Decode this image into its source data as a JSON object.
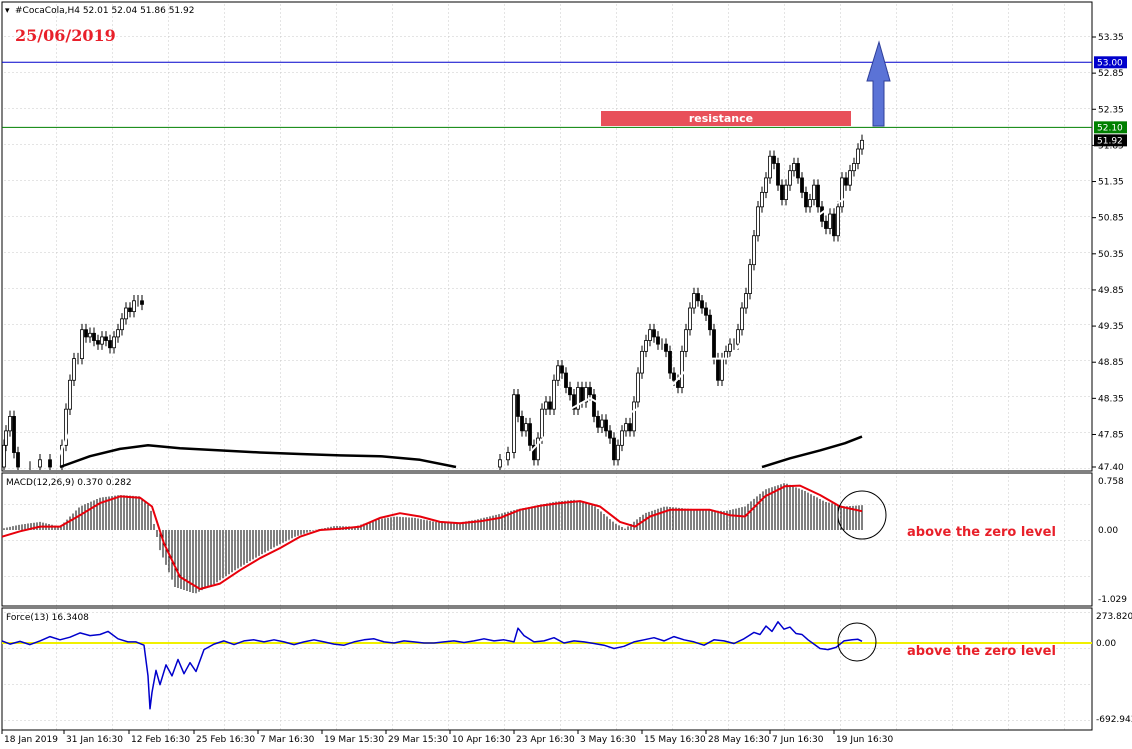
{
  "header": {
    "symbol_info": "#CocaCola,H4  52.01 52.04 51.86 51.92",
    "date": "25/06/2019"
  },
  "annotations": {
    "resistance": "resistance",
    "macd_note": "above the zero level",
    "force_note": "above the zero level"
  },
  "colors": {
    "candle": "#000000",
    "ma_fast": "#ffffff",
    "ma_slow": "#000000",
    "macd_signal": "#e8000b",
    "force": "#0000cc",
    "zero_line": "#f0f000",
    "resistance_line": "#008000",
    "target_line": "#0000cc",
    "arrow": "#5b73d6",
    "resistance_box": "#e8505a",
    "date_text": "#e8202a"
  },
  "chart_data": [
    {
      "type": "candlestick",
      "panel": "price",
      "y_ticks": [
        "53.35",
        "52.85",
        "52.35",
        "51.85",
        "51.35",
        "50.85",
        "50.35",
        "49.85",
        "49.35",
        "48.85",
        "48.35",
        "47.85",
        "47.40"
      ],
      "ylim": [
        47.4,
        53.6
      ],
      "levels": [
        {
          "value": 53.0,
          "label": "53.00",
          "role": "target"
        },
        {
          "value": 52.1,
          "label": "52.10",
          "role": "resistance"
        }
      ],
      "last_price": {
        "value": 51.92,
        "label": "51.92"
      },
      "x_ticks": [
        "18 Jan 2019",
        "31 Jan 16:30",
        "12 Feb 16:30",
        "25 Feb 16:30",
        "7 Mar 16:30",
        "19 Mar 15:30",
        "29 Mar 15:30",
        "10 Apr 16:30",
        "23 Apr 16:30",
        "3 May 16:30",
        "15 May 16:30",
        "28 May 16:30",
        "7 Jun 16:30",
        "19 Jun 16:30"
      ],
      "close_path": [
        [
          0,
          47.4
        ],
        [
          4,
          47.7
        ],
        [
          6,
          47.9
        ],
        [
          10,
          48.1
        ],
        [
          14,
          47.6
        ],
        [
          18,
          47.4
        ],
        [
          30,
          47.4
        ],
        [
          40,
          47.5
        ],
        [
          50,
          47.4
        ],
        [
          62,
          47.7
        ],
        [
          66,
          48.2
        ],
        [
          70,
          48.6
        ],
        [
          74,
          48.9
        ],
        [
          78,
          48.9
        ],
        [
          82,
          49.3
        ],
        [
          86,
          49.2
        ],
        [
          90,
          49.25
        ],
        [
          94,
          49.15
        ],
        [
          98,
          49.1
        ],
        [
          102,
          49.2
        ],
        [
          106,
          49.15
        ],
        [
          110,
          49.05
        ],
        [
          114,
          49.2
        ],
        [
          118,
          49.3
        ],
        [
          122,
          49.45
        ],
        [
          126,
          49.6
        ],
        [
          130,
          49.55
        ],
        [
          134,
          49.7
        ],
        [
          138,
          49.7
        ],
        [
          142,
          49.65
        ],
        [
          146,
          null
        ],
        [
          490,
          47.4
        ],
        [
          500,
          47.5
        ],
        [
          508,
          47.6
        ],
        [
          514,
          48.4
        ],
        [
          518,
          48.1
        ],
        [
          522,
          47.9
        ],
        [
          526,
          48.0
        ],
        [
          530,
          47.7
        ],
        [
          534,
          47.5
        ],
        [
          538,
          47.8
        ],
        [
          542,
          48.2
        ],
        [
          546,
          48.3
        ],
        [
          550,
          48.2
        ],
        [
          554,
          48.6
        ],
        [
          558,
          48.8
        ],
        [
          562,
          48.7
        ],
        [
          566,
          48.5
        ],
        [
          570,
          48.4
        ],
        [
          574,
          48.2
        ],
        [
          578,
          48.5
        ],
        [
          582,
          48.3
        ],
        [
          586,
          48.5
        ],
        [
          590,
          48.4
        ],
        [
          594,
          48.1
        ],
        [
          598,
          47.95
        ],
        [
          602,
          48.05
        ],
        [
          606,
          47.9
        ],
        [
          610,
          47.8
        ],
        [
          614,
          47.5
        ],
        [
          618,
          47.7
        ],
        [
          622,
          47.9
        ],
        [
          626,
          48.0
        ],
        [
          630,
          47.9
        ],
        [
          634,
          48.3
        ],
        [
          638,
          48.7
        ],
        [
          642,
          49.0
        ],
        [
          646,
          49.15
        ],
        [
          650,
          49.3
        ],
        [
          654,
          49.2
        ],
        [
          658,
          49.1
        ],
        [
          662,
          49.1
        ],
        [
          666,
          49.0
        ],
        [
          670,
          48.7
        ],
        [
          674,
          48.6
        ],
        [
          678,
          48.5
        ],
        [
          682,
          49.0
        ],
        [
          686,
          49.3
        ],
        [
          690,
          49.6
        ],
        [
          694,
          49.8
        ],
        [
          698,
          49.7
        ],
        [
          702,
          49.6
        ],
        [
          706,
          49.5
        ],
        [
          710,
          49.3
        ],
        [
          714,
          48.9
        ],
        [
          718,
          48.6
        ],
        [
          722,
          48.9
        ],
        [
          726,
          49.0
        ],
        [
          730,
          49.1
        ],
        [
          734,
          49.1
        ],
        [
          738,
          49.3
        ],
        [
          742,
          49.6
        ],
        [
          746,
          49.8
        ],
        [
          750,
          50.2
        ],
        [
          754,
          50.6
        ],
        [
          758,
          51.0
        ],
        [
          762,
          51.2
        ],
        [
          766,
          51.4
        ],
        [
          770,
          51.7
        ],
        [
          774,
          51.6
        ],
        [
          778,
          51.3
        ],
        [
          782,
          51.1
        ],
        [
          786,
          51.3
        ],
        [
          790,
          51.5
        ],
        [
          794,
          51.6
        ],
        [
          798,
          51.4
        ],
        [
          802,
          51.2
        ],
        [
          806,
          51.0
        ],
        [
          810,
          51.1
        ],
        [
          814,
          51.3
        ],
        [
          818,
          51.0
        ],
        [
          822,
          50.8
        ],
        [
          826,
          50.7
        ],
        [
          830,
          50.9
        ],
        [
          834,
          50.6
        ],
        [
          838,
          51.0
        ],
        [
          842,
          51.4
        ],
        [
          846,
          51.3
        ],
        [
          850,
          51.5
        ],
        [
          854,
          51.6
        ],
        [
          858,
          51.8
        ],
        [
          862,
          51.92
        ]
      ],
      "ma_fast_path": [
        [
          54,
          47.4
        ],
        [
          70,
          47.9
        ],
        [
          90,
          48.3
        ],
        [
          110,
          48.7
        ],
        [
          130,
          49.0
        ],
        [
          146,
          49.15
        ],
        [
          156,
          48.8
        ],
        [
          166,
          48.2
        ],
        [
          176,
          47.6
        ],
        [
          182,
          47.4
        ],
        [
          183,
          null
        ],
        [
          530,
          47.6
        ],
        [
          550,
          47.9
        ],
        [
          570,
          48.2
        ],
        [
          590,
          48.35
        ],
        [
          610,
          48.2
        ],
        [
          630,
          48.15
        ],
        [
          650,
          48.3
        ],
        [
          670,
          48.5
        ],
        [
          690,
          48.8
        ],
        [
          710,
          48.9
        ],
        [
          730,
          48.9
        ],
        [
          750,
          49.3
        ],
        [
          770,
          49.9
        ],
        [
          790,
          50.4
        ],
        [
          810,
          50.8
        ],
        [
          830,
          51.0
        ],
        [
          850,
          51.15
        ],
        [
          862,
          51.2
        ]
      ],
      "ma_slow_path": [
        [
          60,
          47.4
        ],
        [
          90,
          47.55
        ],
        [
          120,
          47.65
        ],
        [
          148,
          47.7
        ],
        [
          180,
          47.66
        ],
        [
          220,
          47.63
        ],
        [
          260,
          47.6
        ],
        [
          300,
          47.58
        ],
        [
          340,
          47.56
        ],
        [
          380,
          47.55
        ],
        [
          420,
          47.5
        ],
        [
          456,
          47.4
        ],
        [
          457,
          null
        ],
        [
          762,
          47.4
        ],
        [
          790,
          47.52
        ],
        [
          820,
          47.63
        ],
        [
          845,
          47.73
        ],
        [
          862,
          47.82
        ]
      ]
    },
    {
      "type": "bar",
      "panel": "macd",
      "title": "MACD(12,26,9) 0.370 0.282",
      "y_ticks": [
        "0.758",
        "0.00",
        "-1.029"
      ],
      "ylim": [
        -1.029,
        0.758
      ],
      "x": [
        2,
        20,
        40,
        60,
        80,
        100,
        120,
        140,
        150,
        160,
        175,
        195,
        215,
        235,
        255,
        275,
        295,
        315,
        335,
        355,
        375,
        395,
        415,
        435,
        455,
        475,
        495,
        515,
        535,
        555,
        575,
        595,
        615,
        625,
        645,
        665,
        685,
        705,
        725,
        745,
        765,
        785,
        805,
        825,
        845,
        862
      ],
      "values": [
        0.02,
        0.08,
        0.12,
        0.05,
        0.35,
        0.48,
        0.52,
        0.5,
        0.35,
        -0.3,
        -0.85,
        -0.95,
        -0.8,
        -0.6,
        -0.42,
        -0.25,
        -0.1,
        0.0,
        0.06,
        0.05,
        0.15,
        0.2,
        0.18,
        0.12,
        0.1,
        0.15,
        0.22,
        0.3,
        0.36,
        0.42,
        0.45,
        0.35,
        0.1,
        0.02,
        0.25,
        0.35,
        0.32,
        0.3,
        0.28,
        0.35,
        0.6,
        0.7,
        0.58,
        0.42,
        0.35,
        0.37
      ],
      "signal_path": [
        [
          2,
          -0.1
        ],
        [
          20,
          -0.02
        ],
        [
          40,
          0.05
        ],
        [
          60,
          0.05
        ],
        [
          80,
          0.22
        ],
        [
          100,
          0.4
        ],
        [
          120,
          0.5
        ],
        [
          140,
          0.48
        ],
        [
          152,
          0.35
        ],
        [
          164,
          -0.2
        ],
        [
          180,
          -0.7
        ],
        [
          200,
          -0.88
        ],
        [
          220,
          -0.8
        ],
        [
          240,
          -0.6
        ],
        [
          260,
          -0.42
        ],
        [
          280,
          -0.27
        ],
        [
          300,
          -0.1
        ],
        [
          320,
          0.0
        ],
        [
          340,
          0.02
        ],
        [
          360,
          0.05
        ],
        [
          380,
          0.18
        ],
        [
          400,
          0.25
        ],
        [
          420,
          0.2
        ],
        [
          440,
          0.12
        ],
        [
          460,
          0.1
        ],
        [
          480,
          0.13
        ],
        [
          500,
          0.18
        ],
        [
          520,
          0.3
        ],
        [
          540,
          0.36
        ],
        [
          560,
          0.4
        ],
        [
          580,
          0.43
        ],
        [
          600,
          0.35
        ],
        [
          620,
          0.12
        ],
        [
          635,
          0.05
        ],
        [
          650,
          0.2
        ],
        [
          670,
          0.3
        ],
        [
          690,
          0.3
        ],
        [
          710,
          0.3
        ],
        [
          730,
          0.22
        ],
        [
          745,
          0.2
        ],
        [
          765,
          0.5
        ],
        [
          785,
          0.65
        ],
        [
          800,
          0.66
        ],
        [
          820,
          0.52
        ],
        [
          840,
          0.35
        ],
        [
          862,
          0.28
        ]
      ]
    },
    {
      "type": "line",
      "panel": "force",
      "title": "Force(13) 16.3408",
      "y_ticks": [
        "273.8208",
        "0.00",
        "-692.943"
      ],
      "ylim": [
        -692.943,
        273.8208
      ],
      "x": [
        2,
        10,
        20,
        30,
        40,
        50,
        60,
        70,
        80,
        90,
        100,
        108,
        118,
        128,
        136,
        144,
        148,
        150,
        152,
        156,
        160,
        166,
        172,
        178,
        184,
        190,
        196,
        204,
        214,
        224,
        234,
        244,
        254,
        264,
        274,
        284,
        294,
        304,
        314,
        324,
        334,
        344,
        354,
        364,
        374,
        384,
        394,
        404,
        414,
        424,
        434,
        444,
        454,
        464,
        474,
        484,
        494,
        504,
        514,
        518,
        524,
        534,
        544,
        554,
        564,
        574,
        584,
        594,
        604,
        614,
        624,
        634,
        644,
        654,
        664,
        674,
        684,
        694,
        704,
        714,
        724,
        734,
        744,
        754,
        760,
        766,
        772,
        778,
        784,
        790,
        796,
        802,
        808,
        814,
        820,
        828,
        836,
        844,
        852,
        858,
        862
      ],
      "values": [
        20,
        -10,
        15,
        -15,
        20,
        60,
        30,
        55,
        95,
        70,
        80,
        110,
        40,
        10,
        10,
        -20,
        -300,
        -600,
        -450,
        -250,
        -380,
        -200,
        -300,
        -150,
        -280,
        -180,
        -260,
        -60,
        -10,
        20,
        -15,
        20,
        30,
        10,
        30,
        10,
        -15,
        10,
        30,
        10,
        -10,
        -20,
        10,
        30,
        40,
        10,
        0,
        20,
        10,
        0,
        0,
        10,
        20,
        5,
        20,
        40,
        20,
        30,
        10,
        140,
        70,
        10,
        20,
        50,
        0,
        20,
        10,
        -5,
        -20,
        -50,
        -30,
        10,
        30,
        50,
        20,
        60,
        30,
        10,
        -20,
        30,
        20,
        -5,
        40,
        100,
        80,
        160,
        110,
        200,
        130,
        150,
        90,
        80,
        30,
        -10,
        -50,
        -60,
        -40,
        20,
        30,
        35,
        16
      ]
    }
  ]
}
